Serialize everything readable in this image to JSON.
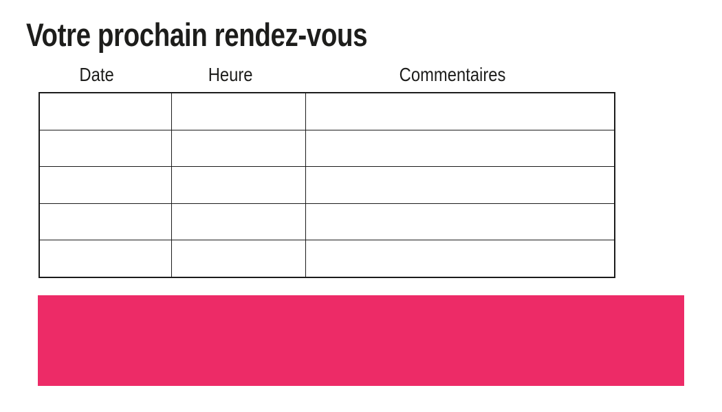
{
  "page": {
    "title": "Votre prochain rendez-vous",
    "background_color": "#ffffff",
    "text_color": "#1d1d1b",
    "accent_color": "#ed2b67"
  },
  "table": {
    "columns": [
      {
        "label": "Date"
      },
      {
        "label": "Heure"
      },
      {
        "label": "Commentaires"
      }
    ],
    "rows": [
      {
        "date": "",
        "heure": "",
        "commentaires": ""
      },
      {
        "date": "",
        "heure": "",
        "commentaires": ""
      },
      {
        "date": "",
        "heure": "",
        "commentaires": ""
      },
      {
        "date": "",
        "heure": "",
        "commentaires": ""
      },
      {
        "date": "",
        "heure": "",
        "commentaires": ""
      }
    ],
    "border_color": "#1a1a1a"
  },
  "highlight_bar": {
    "color": "#ed2b67",
    "label": ""
  }
}
